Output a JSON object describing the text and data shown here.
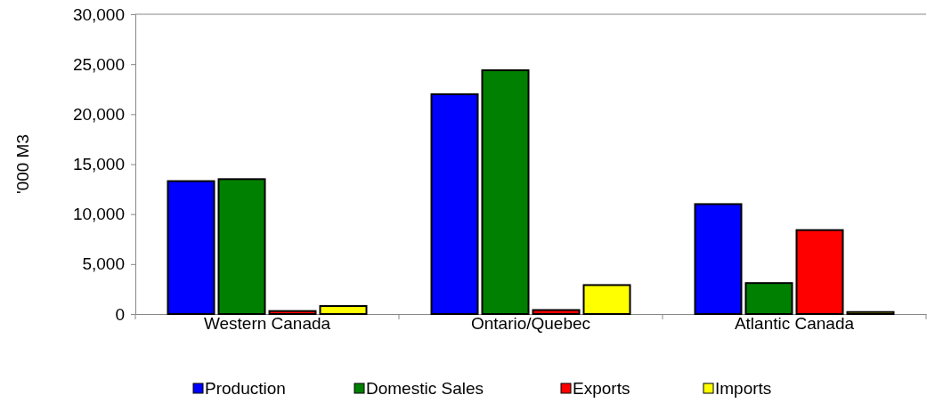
{
  "chart_data": {
    "type": "bar",
    "ylabel": "'000 M3",
    "categories": [
      "Western Canada",
      "Ontario/Quebec",
      "Atlantic Canada"
    ],
    "series": [
      {
        "name": "Production",
        "color": "#0000ff",
        "values": [
          13300,
          22000,
          11000
        ]
      },
      {
        "name": "Domestic Sales",
        "color": "#008000",
        "values": [
          13500,
          24400,
          3100
        ]
      },
      {
        "name": "Exports",
        "color": "#ff0000",
        "values": [
          300,
          400,
          8400
        ]
      },
      {
        "name": "Imports",
        "color": "#ffff00",
        "values": [
          800,
          2900,
          200
        ]
      }
    ],
    "ylim": [
      0,
      30000
    ],
    "yticks": [
      {
        "value": 0,
        "label": "0"
      },
      {
        "value": 5000,
        "label": "5,000"
      },
      {
        "value": 10000,
        "label": "10,000"
      },
      {
        "value": 15000,
        "label": "15,000"
      },
      {
        "value": 20000,
        "label": "20,000"
      },
      {
        "value": 25000,
        "label": "25,000"
      },
      {
        "value": 30000,
        "label": "30,000"
      }
    ],
    "grid": false,
    "legend": "bottom"
  }
}
